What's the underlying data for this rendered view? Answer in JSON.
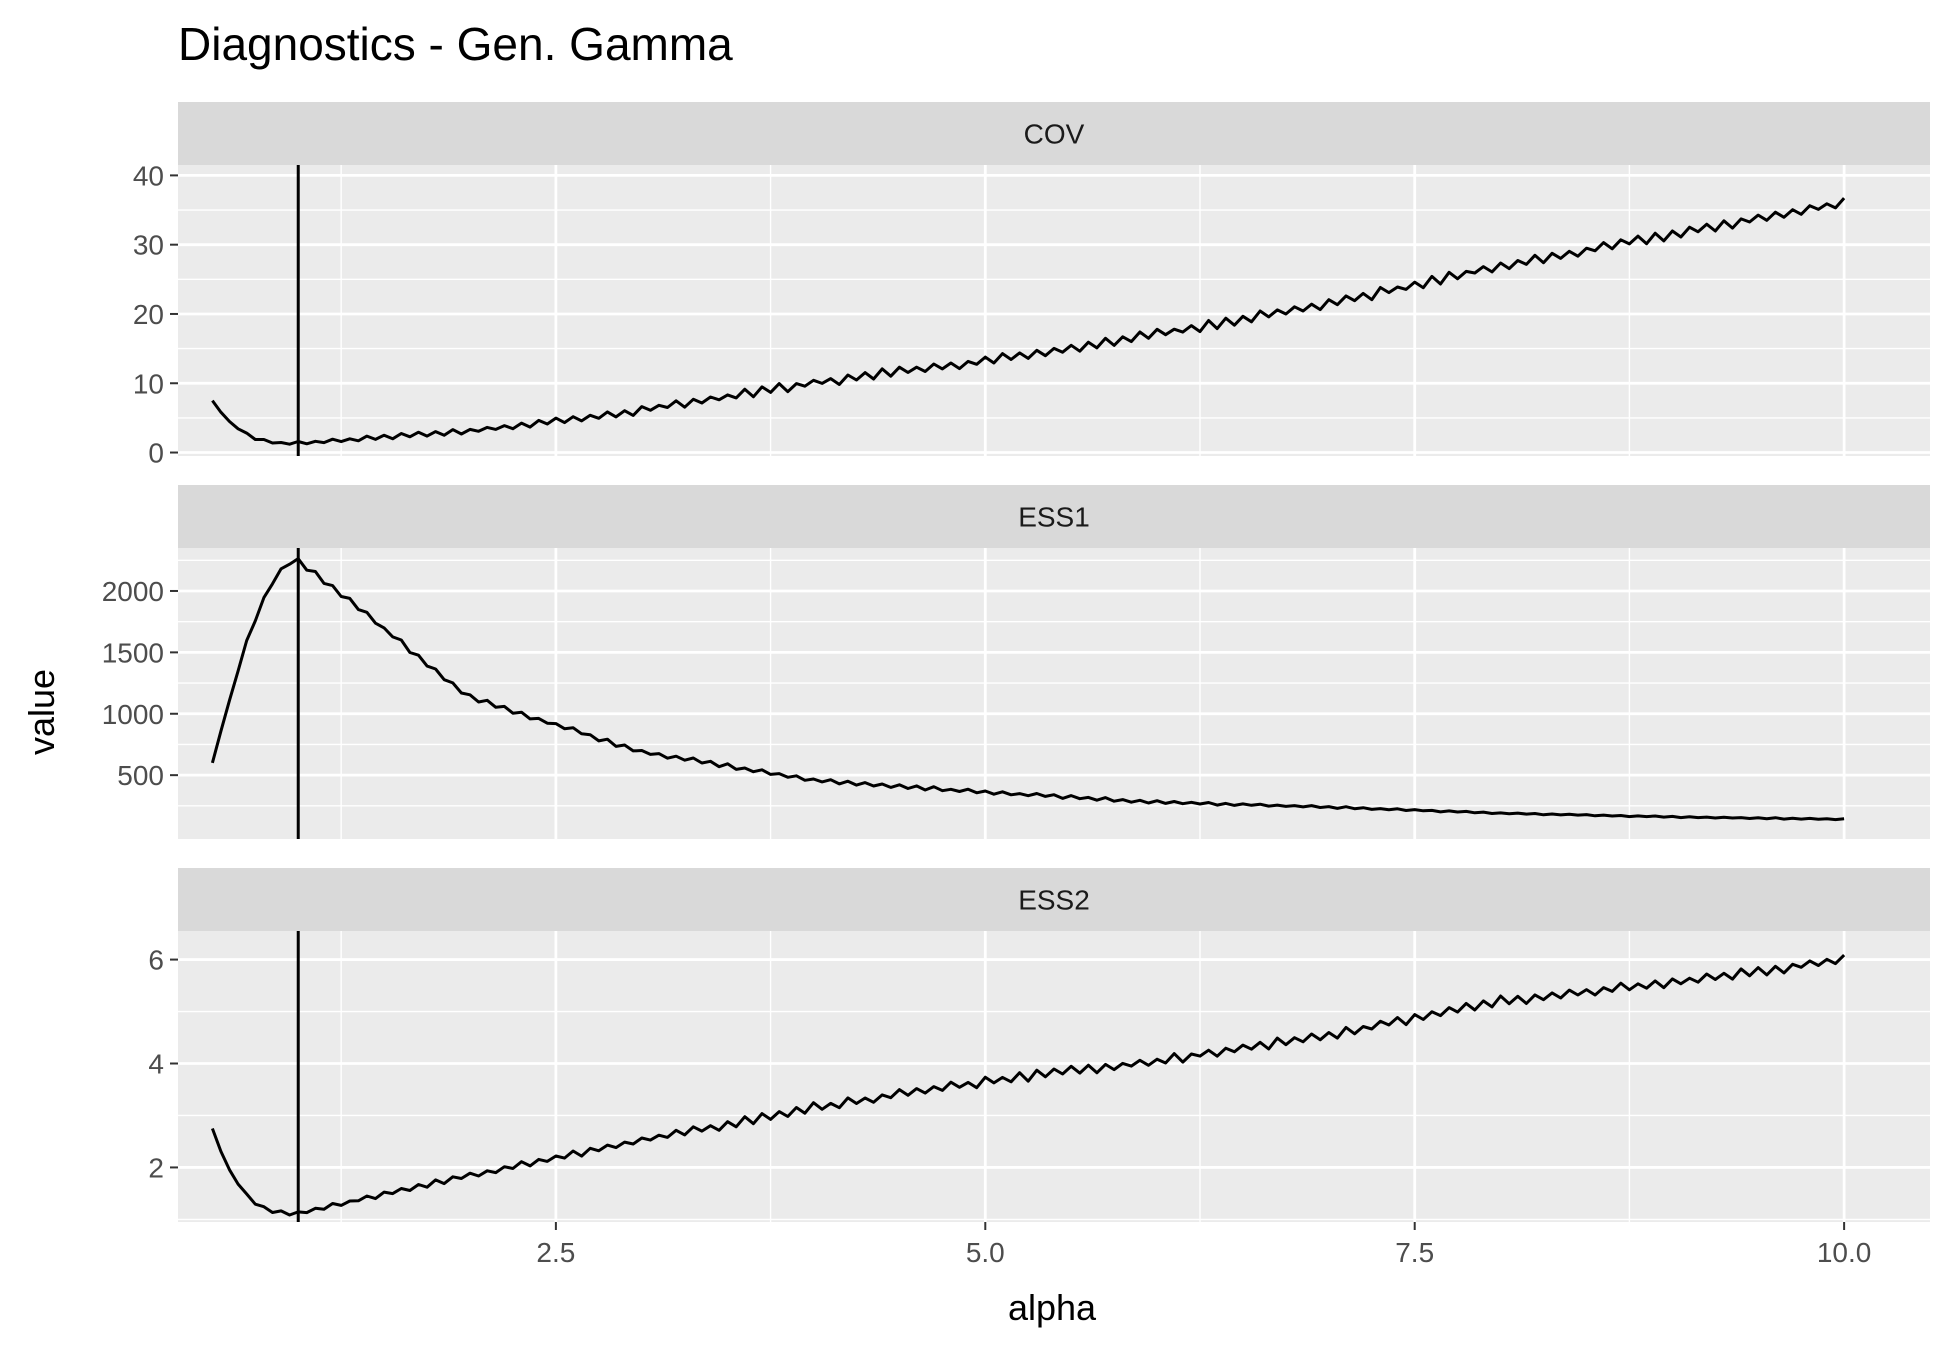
{
  "chart_data": {
    "type": "line",
    "title": "Diagnostics - Gen. Gamma",
    "xlabel": "alpha",
    "ylabel": "value",
    "xlim": [
      0.3,
      10.5
    ],
    "x_ticks": [
      2.5,
      5.0,
      7.5,
      10.0
    ],
    "x_tick_labels": [
      "2.5",
      "5.0",
      "7.5",
      "10.0"
    ],
    "vline_x": 1.0,
    "grid": true,
    "legend": "none",
    "line_color": "#000000",
    "panel_background": "#ebebeb",
    "strip_background": "#d9d9d9",
    "grid_color": "#ffffff",
    "x": [
      0.5,
      1.0,
      2.0,
      3.0,
      4.0,
      5.0,
      6.0,
      7.0,
      8.0,
      9.0,
      10.0
    ],
    "panels": [
      {
        "name": "COV",
        "ylim": [
          -0.5,
          41.5
        ],
        "y_ticks": [
          0,
          10,
          20,
          30,
          40
        ],
        "y_tick_labels": [
          "0",
          "10",
          "20",
          "30",
          "40"
        ],
        "values": [
          7.5,
          1.3,
          3.1,
          6.1,
          10.1,
          13.2,
          17.1,
          21.4,
          27.0,
          31.5,
          36.0
        ]
      },
      {
        "name": "ESS1",
        "ylim": [
          -20,
          2350
        ],
        "y_ticks": [
          500,
          1000,
          1500,
          2000
        ],
        "y_tick_labels": [
          "500",
          "1000",
          "1500",
          "2000"
        ],
        "values": [
          600,
          2250,
          1130,
          690,
          460,
          360,
          280,
          240,
          190,
          160,
          140
        ]
      },
      {
        "name": "ESS2",
        "ylim": [
          0.95,
          6.55
        ],
        "y_ticks": [
          2,
          4,
          6
        ],
        "y_tick_labels": [
          "2",
          "4",
          "6"
        ],
        "values": [
          2.75,
          1.12,
          1.85,
          2.52,
          3.15,
          3.65,
          4.05,
          4.55,
          5.2,
          5.55,
          6.0
        ]
      }
    ]
  }
}
